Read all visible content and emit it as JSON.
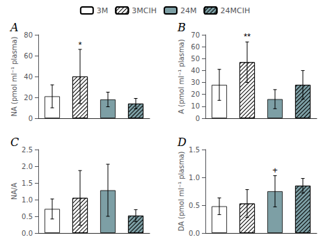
{
  "chart_data": [
    {
      "type": "bar",
      "title": "A",
      "ylabel": "NA (pmol ml⁻¹ plasma)",
      "categories": [
        "3M",
        "3MCIH",
        "24M",
        "24MCIH"
      ],
      "values": [
        21,
        40,
        18,
        14
      ],
      "errors": [
        11,
        26,
        7,
        5
      ],
      "colors": [
        "white",
        "white",
        "#7d9fa5",
        "#7d9fa5"
      ],
      "ylim": [
        0,
        80
      ],
      "yticks": [
        0,
        20,
        40,
        60,
        80
      ],
      "tick_labels": "y",
      "legend": "top",
      "annotations": [
        {
          "category": "3MCIH",
          "text": "*",
          "y": 66
        }
      ]
    },
    {
      "type": "bar",
      "title": "B",
      "ylabel": "A (pmol ml⁻¹ plasma)",
      "categories": [
        "3M",
        "3MCIH",
        "24M",
        "24MCIH"
      ],
      "values": [
        28,
        47,
        16,
        28
      ],
      "errors": [
        13,
        17,
        8,
        12
      ],
      "colors": [
        "white",
        "white",
        "#7d9fa5",
        "#7d9fa5"
      ],
      "ylim": [
        0,
        70
      ],
      "yticks": [
        0,
        10,
        20,
        30,
        40,
        50,
        60,
        70
      ],
      "tick_labels": "y",
      "annotations": [
        {
          "category": "3MCIH",
          "text": "**",
          "y": 65
        }
      ]
    },
    {
      "type": "bar",
      "title": "C",
      "ylabel": "NA/A",
      "categories": [
        "3M",
        "3MCIH",
        "24M",
        "24MCIH"
      ],
      "values": [
        0.72,
        1.05,
        1.28,
        0.52
      ],
      "errors": [
        0.3,
        0.82,
        0.78,
        0.18
      ],
      "colors": [
        "white",
        "white",
        "#7d9fa5",
        "#7d9fa5"
      ],
      "ylim": [
        0.0,
        2.5
      ],
      "yticks": [
        {
          "value": 0,
          "label": "0.0"
        },
        0.5,
        {
          "value": 1,
          "label": "1.0"
        },
        1.5,
        {
          "value": 2,
          "label": "2.0"
        },
        2.5
      ],
      "tick_labels": "y"
    },
    {
      "type": "bar",
      "title": "D",
      "ylabel": "DA (pmol ml⁻¹ plasma)",
      "categories": [
        "3M",
        "3MCIH",
        "24M",
        "24MCIH"
      ],
      "values": [
        0.48,
        0.53,
        0.75,
        0.85
      ],
      "errors": [
        0.15,
        0.25,
        0.28,
        0.13
      ],
      "colors": [
        "white",
        "white",
        "#7d9fa5",
        "#7d9fa5"
      ],
      "ylim": [
        0.0,
        1.5
      ],
      "yticks": [
        {
          "value": 0,
          "label": "0.0"
        },
        0.5,
        {
          "value": 1,
          "label": "1.0"
        },
        1.5
      ],
      "tick_labels": "y",
      "annotations": [
        {
          "category": "24M",
          "text": "+",
          "y": 1.05
        }
      ]
    }
  ]
}
